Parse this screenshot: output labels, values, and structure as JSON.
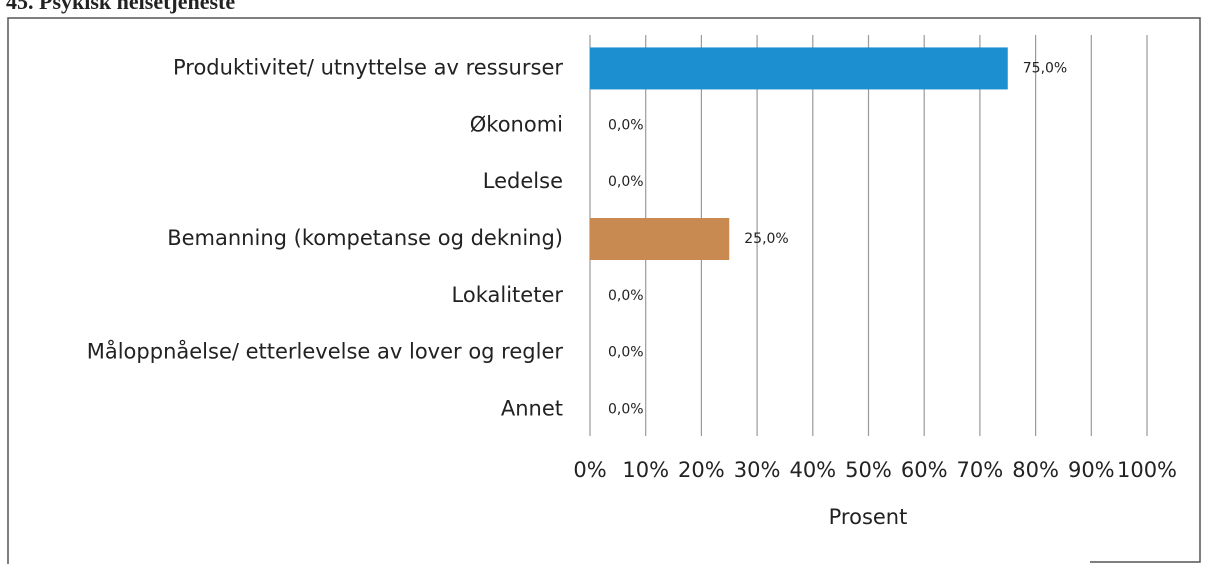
{
  "chart_data": {
    "type": "barh",
    "title": "45. Psykisk helsetjeneste",
    "categories": [
      "Produktivitet/ utnyttelse av ressurser",
      "Økonomi",
      "Ledelse",
      "Bemanning (kompetanse og dekning)",
      "Lokaliteter",
      "Måloppnåelse/ etterlevelse av lover og regler",
      "Annet"
    ],
    "values": [
      75,
      0,
      0,
      25,
      0,
      0,
      0
    ],
    "value_labels": [
      "75,0%",
      "0,0%",
      "0,0%",
      "25,0%",
      "0,0%",
      "0,0%",
      "0,0%"
    ],
    "colors": [
      "#1b8fcf",
      "#1b8fcf",
      "#1b8fcf",
      "#c98a52",
      "#1b8fcf",
      "#1b8fcf",
      "#1b8fcf"
    ],
    "xlabel": "Prosent",
    "xlim": [
      0,
      100
    ],
    "xticks": [
      {
        "value": 0,
        "label": "0%"
      },
      {
        "value": 10,
        "label": "10%"
      },
      {
        "value": 20,
        "label": "20%"
      },
      {
        "value": 30,
        "label": "30%"
      },
      {
        "value": 40,
        "label": "40%"
      },
      {
        "value": 50,
        "label": "50%"
      },
      {
        "value": 60,
        "label": "60%"
      },
      {
        "value": 70,
        "label": "70%"
      },
      {
        "value": 80,
        "label": "80%"
      },
      {
        "value": 90,
        "label": "90%"
      },
      {
        "value": 100,
        "label": "100%"
      }
    ],
    "grid": true
  }
}
